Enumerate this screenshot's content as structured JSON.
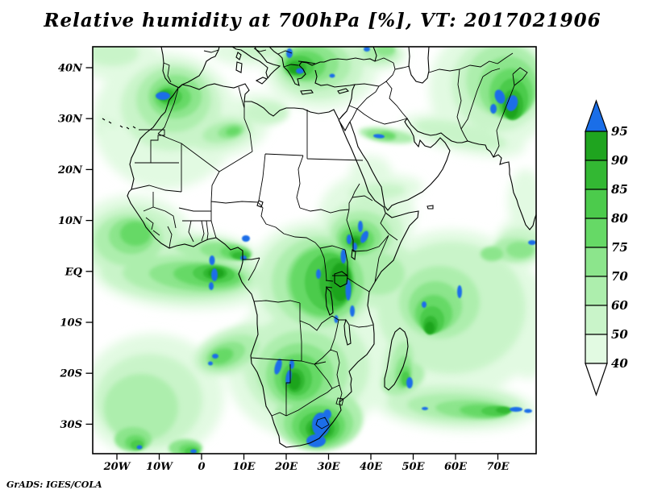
{
  "title": "Relative humidity at 700hPa [%], VT: 2017021906",
  "attribution": "GrADS: IGES/COLA",
  "axes": {
    "x_tick_labels": [
      "20W",
      "10W",
      "0",
      "10E",
      "20E",
      "30E",
      "40E",
      "50E",
      "60E",
      "70E"
    ],
    "y_tick_labels": [
      "40N",
      "30N",
      "20N",
      "10N",
      "EQ",
      "10S",
      "20S",
      "30S"
    ]
  },
  "colorbar": {
    "labels": [
      "95",
      "90",
      "85",
      "80",
      "75",
      "70",
      "60",
      "50",
      "40"
    ],
    "box_colors_top_to_bottom": [
      "#1fa41f",
      "#33b833",
      "#4ccb4c",
      "#66d966",
      "#8ce58c",
      "#adeead",
      "#c9f4c9",
      "#e2fae2"
    ],
    "above_color": "#1a6ee8",
    "below_color": "#ffffff",
    "frame_color": "#000000"
  },
  "chart_data": {
    "type": "heatmap",
    "title": "Relative humidity at 700hPa [%], VT: 2017021906",
    "variable": "Relative humidity",
    "pressure_level": "700hPa",
    "units": "%",
    "valid_time": "2017021906",
    "projection": "lat-lon map of Africa / Middle East / Indian Ocean",
    "lon_range_deg": [
      -26,
      79
    ],
    "lat_range_deg": [
      -36,
      44
    ],
    "x_tick_lons": [
      "20W",
      "10W",
      "0",
      "10E",
      "20E",
      "30E",
      "40E",
      "50E",
      "60E",
      "70E"
    ],
    "y_tick_lats": [
      "40N",
      "30N",
      "20N",
      "10N",
      "EQ",
      "10S",
      "20S",
      "30S"
    ],
    "shade_levels_percent": [
      40,
      50,
      60,
      70,
      75,
      80,
      85,
      90,
      95
    ],
    "shade_colors_low_to_high": [
      "#e2fae2",
      "#c9f4c9",
      "#adeead",
      "#8ce58c",
      "#66d966",
      "#4ccb4c",
      "#33b833",
      "#1fa41f",
      "#1a6ee8"
    ],
    "legend_position": "right",
    "grid": false,
    "high_humidity_features": [
      {
        "area": "Strait of Gibraltar / NW Morocco",
        "lon": -7,
        "lat": 34,
        "value_percent": 95
      },
      {
        "area": "Southern Balkans / Aegean Sea",
        "lon": 22,
        "lat": 39,
        "value_percent": 95
      },
      {
        "area": "Caucasus (top edge)",
        "lon": 39,
        "lat": 43,
        "value_percent": 95
      },
      {
        "area": "Northern Algeria swirl",
        "lon": 5,
        "lat": 27,
        "value_percent": 80
      },
      {
        "area": "NW India / N Pakistan Himalayan foothills",
        "lon": 73,
        "lat": 32,
        "value_percent": 95
      },
      {
        "area": "Persian Gulf / N Saudi streak",
        "lon": 42,
        "lat": 26,
        "value_percent": 95
      },
      {
        "area": "Gulf of Guinea coast (S Nigeria / Cameroon)",
        "lon": 10,
        "lat": 6,
        "value_percent": 95
      },
      {
        "area": "Equatorial Atlantic band",
        "lon": 3,
        "lat": -1,
        "value_percent": 95
      },
      {
        "area": "Ethiopian Highlands",
        "lon": 37,
        "lat": 8,
        "value_percent": 95
      },
      {
        "area": "Congo Basin / African Great Lakes",
        "lon": 32,
        "lat": -2,
        "value_percent": 95
      },
      {
        "area": "Angola–Namibia–Botswana",
        "lon": 21,
        "lat": -21,
        "value_percent": 95
      },
      {
        "area": "South Atlantic cyclone W of Namibia",
        "lon": 3,
        "lat": -17,
        "value_percent": 95
      },
      {
        "area": "Eastern South Africa",
        "lon": 28,
        "lat": -30,
        "value_percent": 95
      },
      {
        "area": "Southern Madagascar",
        "lon": 48,
        "lat": -22,
        "value_percent": 95
      },
      {
        "area": "SW Indian Ocean band",
        "lon": 60,
        "lat": -27,
        "value_percent": 95
      },
      {
        "area": "Southern India (bottom-right corner)",
        "lon": 77,
        "lat": 6,
        "value_percent": 95
      },
      {
        "area": "Sahel / Sudan light band",
        "lon": 42,
        "lat": 16,
        "value_percent": 50
      },
      {
        "area": "Atlantic off Senegal / Guinea",
        "lon": -17,
        "lat": 6,
        "value_percent": 75
      },
      {
        "area": "Central Indian Ocean swirls",
        "lon": 56,
        "lat": -8,
        "value_percent": 85
      },
      {
        "area": "South Atlantic swirls (bottom-left)",
        "lon": -13,
        "lat": -33,
        "value_percent": 85
      }
    ]
  }
}
